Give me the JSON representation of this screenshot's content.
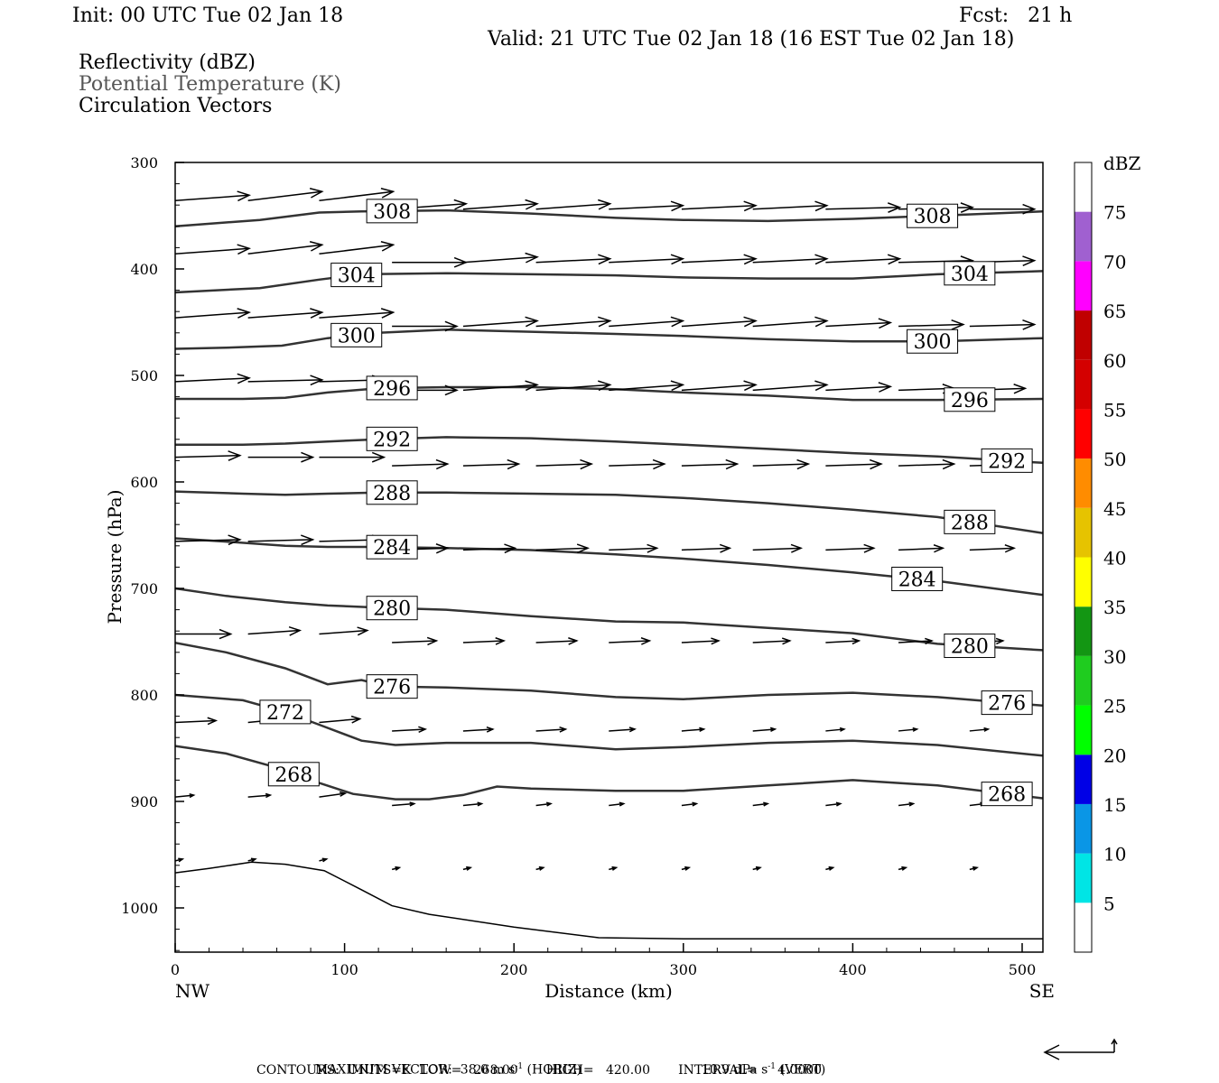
{
  "header": {
    "init": "Init: 00 UTC Tue 02 Jan 18",
    "fcst": "Fcst:   21 h",
    "valid": "Valid: 21 UTC Tue 02 Jan 18 (16 EST Tue 02 Jan 18)",
    "fields": [
      "Reflectivity (dBZ)",
      "Potential Temperature (K)",
      "Circulation Vectors"
    ]
  },
  "footer": {
    "line1_prefix": "MAXIMUM VECTOR:  38.0 m s",
    "line1_horiz": " (HORIZ)",
    "line1_vert_prefix": "10.9 dPa s",
    "line1_vert": " (VERT)",
    "exponent": "-1",
    "line2": "CONTOURS:  UNITS=K  LOW=   268.00       HIGH=   420.00       INTERVAL=     4.0000"
  },
  "colorbar": {
    "title": "dBZ",
    "labels": [
      "5",
      "10",
      "15",
      "20",
      "25",
      "30",
      "35",
      "40",
      "45",
      "50",
      "55",
      "60",
      "65",
      "70",
      "75"
    ],
    "colors": [
      "#00e5e5",
      "#0a96e6",
      "#0000e6",
      "#00ff00",
      "#1fcc1f",
      "#139613",
      "#ffff00",
      "#e6c300",
      "#ff8c00",
      "#ff0000",
      "#d40000",
      "#c00000",
      "#ff00ff",
      "#a060d0"
    ]
  },
  "chart_data": {
    "type": "cross-section contour + vector",
    "xlabel": "Distance (km)",
    "ylabel": "Pressure (hPa)",
    "xlim": [
      0,
      512
    ],
    "ylim": [
      1040,
      300
    ],
    "y_reversed": true,
    "xticks": [
      "0",
      "100",
      "200",
      "300",
      "400",
      "500"
    ],
    "yticks": [
      "300",
      "400",
      "500",
      "600",
      "700",
      "800",
      "900",
      "1000"
    ],
    "left_end_label": "NW",
    "right_end_label": "SE",
    "terrain": {
      "x": [
        0,
        20,
        45,
        65,
        88,
        110,
        128,
        150,
        200,
        250,
        300,
        400,
        512
      ],
      "p": [
        967,
        963,
        957,
        959,
        965,
        983,
        998,
        1006,
        1018,
        1028,
        1029,
        1029,
        1029
      ]
    },
    "theta_contours": [
      {
        "level": "308",
        "x": [
          0,
          50,
          85,
          110,
          160,
          210,
          260,
          300,
          350,
          400,
          450,
          512
        ],
        "p": [
          360,
          354,
          347,
          346,
          345,
          348,
          352,
          354,
          355,
          353,
          350,
          346
        ],
        "labels": [
          [
            128,
            358
          ],
          [
            447,
            360
          ]
        ]
      },
      {
        "level": "304",
        "x": [
          0,
          50,
          85,
          110,
          160,
          210,
          260,
          300,
          350,
          400,
          450,
          512
        ],
        "p": [
          422,
          418,
          410,
          405,
          404,
          405,
          406,
          408,
          409,
          409,
          405,
          402
        ],
        "labels": [
          [
            107,
            305
          ],
          [
            469,
            305
          ]
        ]
      },
      {
        "level": "300",
        "x": [
          0,
          30,
          63,
          90,
          120,
          160,
          210,
          260,
          300,
          350,
          400,
          450,
          512
        ],
        "p": [
          475,
          474,
          472,
          465,
          460,
          457,
          459,
          461,
          463,
          466,
          468,
          468,
          465
        ],
        "labels": [
          [
            107,
            366
          ],
          [
            447,
            369
          ]
        ]
      },
      {
        "level": "296",
        "x": [
          0,
          40,
          65,
          90,
          120,
          160,
          210,
          260,
          300,
          350,
          400,
          450,
          512
        ],
        "p": [
          522,
          522,
          521,
          516,
          512,
          511,
          511,
          513,
          516,
          519,
          523,
          523,
          522
        ],
        "labels": [
          [
            128,
            371
          ],
          [
            469,
            369
          ]
        ]
      },
      {
        "level": "292",
        "x": [
          0,
          40,
          65,
          90,
          120,
          160,
          210,
          260,
          300,
          350,
          400,
          450,
          512
        ],
        "p": [
          565,
          565,
          564,
          562,
          560,
          558,
          559,
          562,
          565,
          569,
          573,
          576,
          582
        ],
        "labels": [
          [
            128,
            373
          ],
          [
            491,
            373
          ]
        ]
      },
      {
        "level": "288",
        "x": [
          0,
          40,
          65,
          90,
          120,
          160,
          210,
          260,
          300,
          350,
          400,
          450,
          512
        ],
        "p": [
          609,
          611,
          612,
          611,
          610,
          610,
          611,
          612,
          615,
          620,
          626,
          633,
          648
        ],
        "labels": [
          [
            128,
            378
          ],
          [
            469,
            369
          ]
        ]
      },
      {
        "level": "284",
        "x": [
          0,
          30,
          65,
          90,
          120,
          160,
          210,
          260,
          300,
          350,
          400,
          450,
          512
        ],
        "p": [
          653,
          656,
          660,
          661,
          661,
          662,
          664,
          668,
          672,
          678,
          685,
          693,
          706
        ],
        "labels": [
          [
            128,
            383
          ],
          [
            438,
            382
          ]
        ]
      },
      {
        "level": "280",
        "x": [
          0,
          30,
          65,
          90,
          120,
          160,
          210,
          260,
          300,
          350,
          400,
          450,
          512
        ],
        "p": [
          700,
          707,
          713,
          716,
          718,
          720,
          726,
          731,
          732,
          737,
          742,
          752,
          758
        ],
        "labels": [
          [
            128,
            374
          ],
          [
            469,
            374
          ]
        ]
      },
      {
        "level": "276",
        "x": [
          0,
          30,
          65,
          90,
          110,
          125,
          160,
          210,
          260,
          300,
          350,
          400,
          450,
          512
        ],
        "p": [
          751,
          760,
          775,
          790,
          786,
          792,
          793,
          796,
          802,
          804,
          800,
          798,
          802,
          810
        ],
        "labels": [
          [
            128,
            382
          ],
          [
            491,
            382
          ]
        ]
      },
      {
        "level": "272",
        "x": [
          0,
          40,
          65,
          85,
          110,
          130,
          160,
          210,
          260,
          300,
          350,
          400,
          450,
          512
        ],
        "p": [
          800,
          805,
          816,
          828,
          843,
          847,
          845,
          845,
          851,
          849,
          845,
          843,
          847,
          857
        ],
        "labels": [
          [
            65,
            303
          ]
        ]
      },
      {
        "level": "268",
        "x": [
          0,
          30,
          55,
          80,
          105,
          130,
          150,
          170,
          190,
          210,
          260,
          300,
          350,
          400,
          450,
          512
        ],
        "p": [
          848,
          855,
          866,
          880,
          893,
          898,
          898,
          894,
          886,
          888,
          890,
          890,
          885,
          880,
          885,
          897
        ],
        "labels": [
          [
            70,
            302
          ],
          [
            491,
            380
          ]
        ]
      }
    ],
    "vectors": [
      {
        "p": 335,
        "x": [
          0,
          43,
          85
        ],
        "u": [
          40,
          40,
          40
        ],
        "w": [
          3,
          5,
          5
        ],
        "x2": [
          128,
          170,
          213,
          256,
          299,
          341,
          384,
          427,
          469
        ],
        "u2": [
          40,
          40,
          40,
          40,
          40,
          40,
          40,
          40,
          35
        ],
        "w2": [
          3,
          3,
          3,
          2,
          2,
          2,
          1,
          1,
          0
        ]
      },
      {
        "p": 385,
        "x": [
          0,
          43,
          85
        ],
        "u": [
          40,
          40,
          40
        ],
        "w": [
          3,
          5,
          5
        ],
        "x2": [
          128,
          170,
          213,
          256,
          299,
          341,
          384,
          427,
          469
        ],
        "u2": [
          40,
          40,
          40,
          40,
          40,
          40,
          40,
          40,
          35
        ],
        "w2": [
          0,
          3,
          2,
          2,
          2,
          2,
          2,
          1,
          1
        ]
      },
      {
        "p": 445,
        "x": [
          0,
          43,
          85
        ],
        "u": [
          40,
          40,
          40
        ],
        "w": [
          3,
          3,
          3
        ],
        "x2": [
          128,
          170,
          213,
          256,
          299,
          341,
          384,
          427,
          469
        ],
        "u2": [
          35,
          40,
          40,
          40,
          40,
          40,
          35,
          35,
          35
        ],
        "w2": [
          0,
          3,
          3,
          3,
          3,
          3,
          2,
          1,
          1
        ]
      },
      {
        "p": 505,
        "x": [
          0,
          43,
          85
        ],
        "u": [
          40,
          40,
          35
        ],
        "w": [
          2,
          1,
          1
        ],
        "x2": [
          128,
          170,
          213,
          256,
          299,
          341,
          384,
          427,
          469
        ],
        "u2": [
          35,
          40,
          40,
          40,
          40,
          40,
          35,
          30,
          30
        ],
        "w2": [
          0,
          3,
          3,
          3,
          3,
          3,
          2,
          1,
          1
        ]
      },
      {
        "p": 576,
        "x": [
          0,
          43,
          85
        ],
        "u": [
          35,
          35,
          35
        ],
        "w": [
          1,
          0,
          0
        ],
        "x2": [
          128,
          170,
          213,
          256,
          299,
          341,
          384,
          427,
          469
        ],
        "u2": [
          30,
          30,
          30,
          30,
          30,
          30,
          30,
          30,
          30
        ],
        "w2": [
          1,
          1,
          1,
          1,
          1,
          1,
          1,
          1,
          1
        ]
      },
      {
        "p": 655,
        "x": [
          0,
          43,
          85
        ],
        "u": [
          35,
          35,
          35
        ],
        "w": [
          1,
          1,
          1
        ],
        "x2": [
          128,
          170,
          213,
          256,
          299,
          341,
          384,
          427,
          469
        ],
        "u2": [
          30,
          28,
          28,
          26,
          26,
          26,
          26,
          24,
          24
        ],
        "w2": [
          1,
          1,
          1,
          1,
          1,
          1,
          1,
          1,
          1
        ]
      },
      {
        "p": 742,
        "x": [
          0,
          43,
          85
        ],
        "u": [
          30,
          28,
          26
        ],
        "w": [
          0,
          2,
          2
        ],
        "x2": [
          128,
          170,
          213,
          256,
          299,
          341,
          384,
          427,
          469
        ],
        "u2": [
          24,
          22,
          22,
          22,
          20,
          20,
          18,
          18,
          18
        ],
        "w2": [
          1,
          1,
          1,
          1,
          1,
          1,
          1,
          1,
          1
        ]
      },
      {
        "p": 825,
        "x": [
          0,
          43,
          85
        ],
        "u": [
          22,
          20,
          22
        ],
        "w": [
          1,
          2,
          2
        ],
        "x2": [
          128,
          170,
          213,
          256,
          299,
          341,
          384,
          427,
          469
        ],
        "u2": [
          18,
          16,
          16,
          14,
          12,
          12,
          10,
          10,
          10
        ],
        "w2": [
          1,
          1,
          1,
          1,
          1,
          1,
          1,
          1,
          1
        ]
      },
      {
        "p": 895,
        "x": [
          0,
          43,
          85
        ],
        "u": [
          10,
          12,
          14
        ],
        "w": [
          1,
          1,
          2
        ],
        "x2": [
          128,
          170,
          213,
          256,
          299,
          341,
          384,
          427,
          469
        ],
        "u2": [
          12,
          10,
          8,
          8,
          8,
          8,
          8,
          8,
          8
        ],
        "w2": [
          1,
          1,
          1,
          1,
          1,
          1,
          1,
          1,
          1
        ]
      },
      {
        "p": 955,
        "x": [
          0,
          43,
          85
        ],
        "u": [
          4,
          4,
          4
        ],
        "w": [
          1,
          1,
          1
        ],
        "x2": [
          128,
          170,
          213,
          256,
          299,
          341,
          384,
          427,
          469
        ],
        "u2": [
          4,
          4,
          4,
          4,
          4,
          4,
          4,
          4,
          4
        ],
        "w2": [
          1,
          1,
          1,
          1,
          1,
          1,
          1,
          1,
          1
        ]
      }
    ]
  }
}
